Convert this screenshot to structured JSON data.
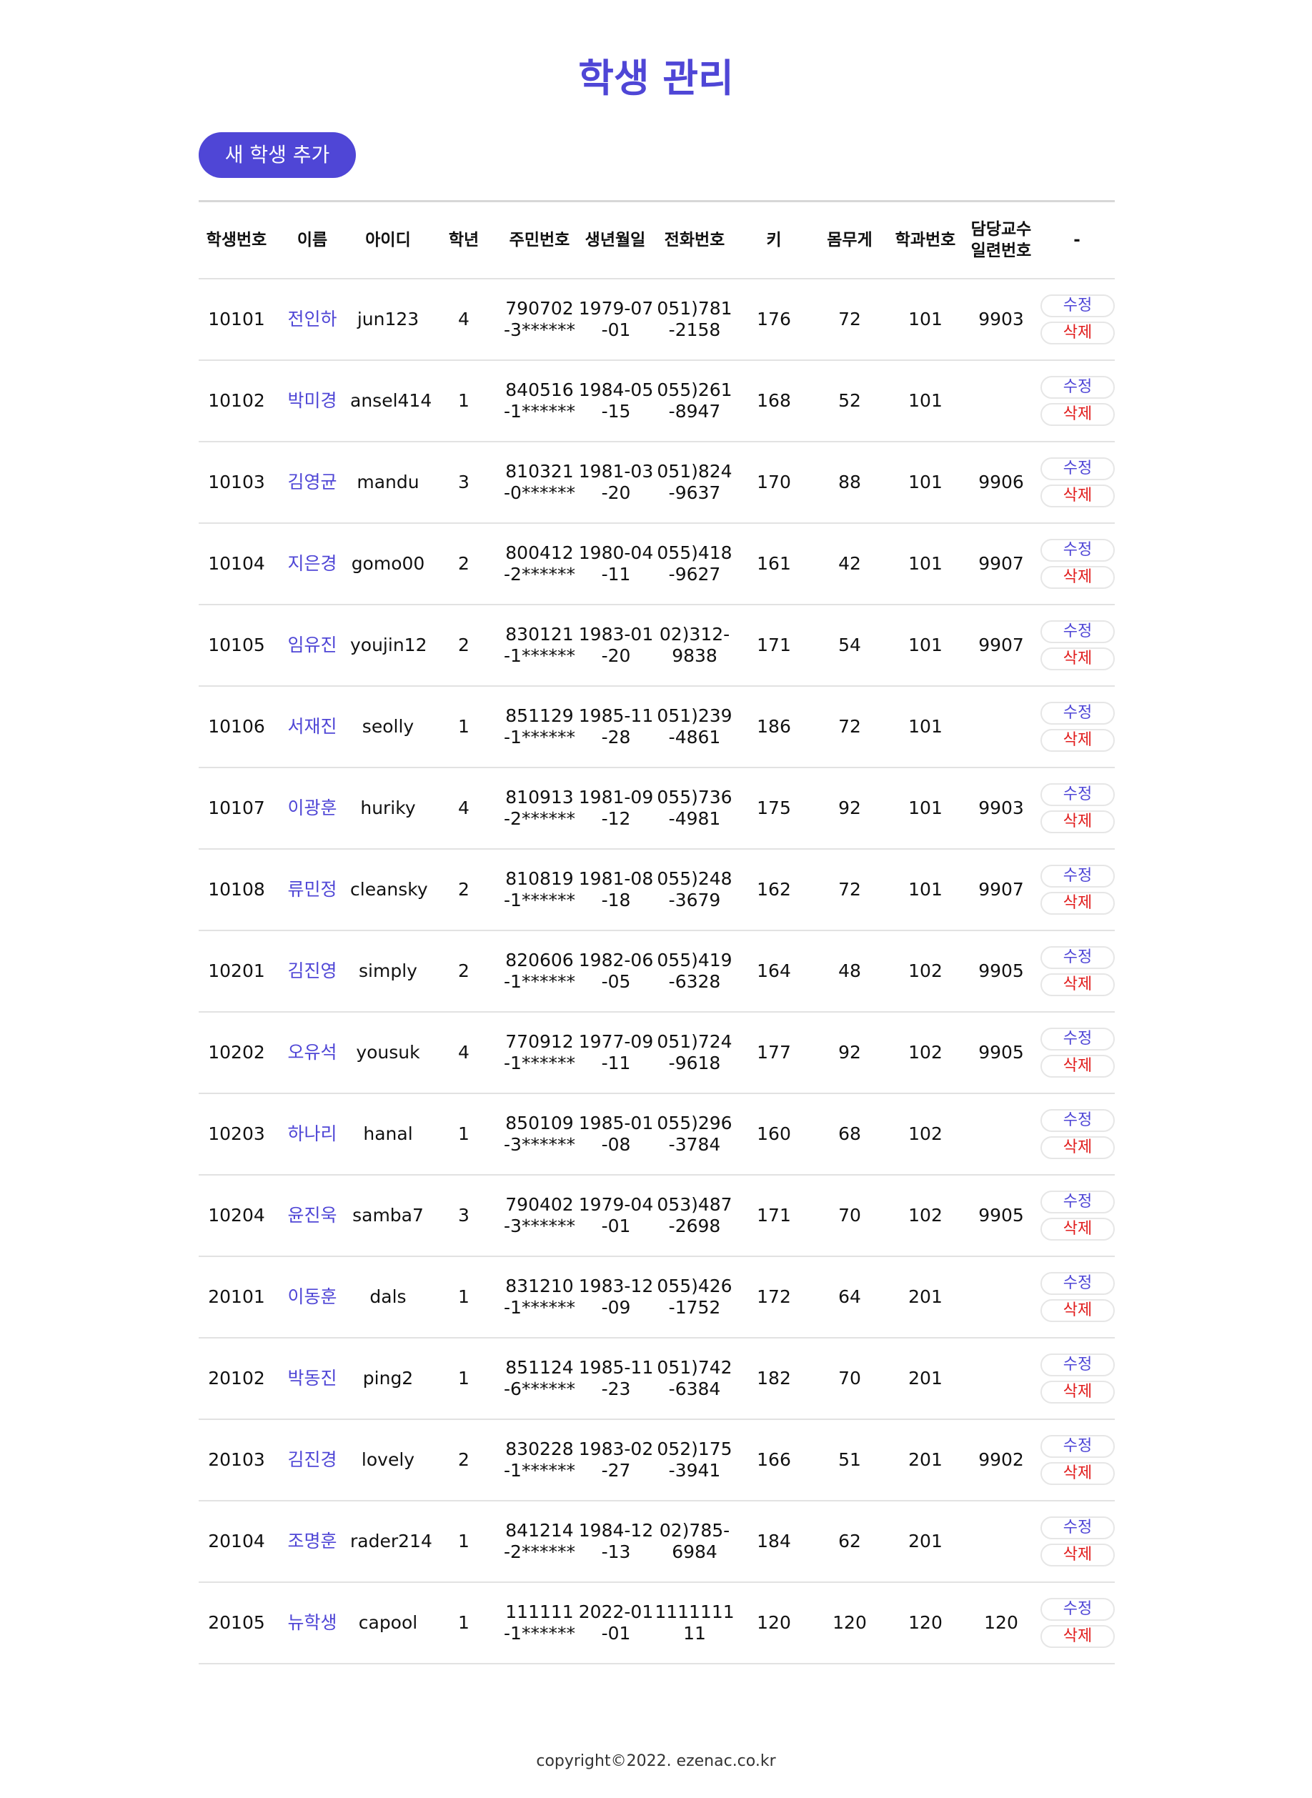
{
  "page": {
    "title": "학생 관리",
    "add_button_label": "새 학생 추가",
    "footer": "copyright©2022. ezenac.co.kr"
  },
  "table": {
    "headers": {
      "studno": "학생번호",
      "name": "이름",
      "userid": "아이디",
      "grade": "학년",
      "jumin": "주민번호",
      "birthdate": "생년월일",
      "tel": "전화번호",
      "height": "키",
      "weight": "몸무게",
      "deptno": "학과번호",
      "profno_line1": "담당교수",
      "profno_line2": "일련번호",
      "actions": "-"
    },
    "edit_label": "수정",
    "delete_label": "삭제",
    "rows": [
      {
        "studno": "10101",
        "name": "전인하",
        "userid": "jun123",
        "grade": "4",
        "jumin": "790702-3******",
        "birthdate": "1979-07-01",
        "tel": "051)781-2158",
        "height": "176",
        "weight": "72",
        "deptno": "101",
        "profno": "9903"
      },
      {
        "studno": "10102",
        "name": "박미경",
        "userid": "ansel414",
        "grade": "1",
        "jumin": "840516-1******",
        "birthdate": "1984-05-15",
        "tel": "055)261-8947",
        "height": "168",
        "weight": "52",
        "deptno": "101",
        "profno": ""
      },
      {
        "studno": "10103",
        "name": "김영균",
        "userid": "mandu",
        "grade": "3",
        "jumin": "810321-0******",
        "birthdate": "1981-03-20",
        "tel": "051)824-9637",
        "height": "170",
        "weight": "88",
        "deptno": "101",
        "profno": "9906"
      },
      {
        "studno": "10104",
        "name": "지은경",
        "userid": "gomo00",
        "grade": "2",
        "jumin": "800412-2******",
        "birthdate": "1980-04-11",
        "tel": "055)418-9627",
        "height": "161",
        "weight": "42",
        "deptno": "101",
        "profno": "9907"
      },
      {
        "studno": "10105",
        "name": "임유진",
        "userid": "youjin12",
        "grade": "2",
        "jumin": "830121-1******",
        "birthdate": "1983-01-20",
        "tel": "02)312-9838",
        "height": "171",
        "weight": "54",
        "deptno": "101",
        "profno": "9907"
      },
      {
        "studno": "10106",
        "name": "서재진",
        "userid": "seolly",
        "grade": "1",
        "jumin": "851129-1******",
        "birthdate": "1985-11-28",
        "tel": "051)239-4861",
        "height": "186",
        "weight": "72",
        "deptno": "101",
        "profno": ""
      },
      {
        "studno": "10107",
        "name": "이광훈",
        "userid": "huriky",
        "grade": "4",
        "jumin": "810913-2******",
        "birthdate": "1981-09-12",
        "tel": "055)736-4981",
        "height": "175",
        "weight": "92",
        "deptno": "101",
        "profno": "9903"
      },
      {
        "studno": "10108",
        "name": "류민정",
        "userid": "cleansky",
        "grade": "2",
        "jumin": "810819-1******",
        "birthdate": "1981-08-18",
        "tel": "055)248-3679",
        "height": "162",
        "weight": "72",
        "deptno": "101",
        "profno": "9907"
      },
      {
        "studno": "10201",
        "name": "김진영",
        "userid": "simply",
        "grade": "2",
        "jumin": "820606-1******",
        "birthdate": "1982-06-05",
        "tel": "055)419-6328",
        "height": "164",
        "weight": "48",
        "deptno": "102",
        "profno": "9905"
      },
      {
        "studno": "10202",
        "name": "오유석",
        "userid": "yousuk",
        "grade": "4",
        "jumin": "770912-1******",
        "birthdate": "1977-09-11",
        "tel": "051)724-9618",
        "height": "177",
        "weight": "92",
        "deptno": "102",
        "profno": "9905"
      },
      {
        "studno": "10203",
        "name": "하나리",
        "userid": "hanal",
        "grade": "1",
        "jumin": "850109-3******",
        "birthdate": "1985-01-08",
        "tel": "055)296-3784",
        "height": "160",
        "weight": "68",
        "deptno": "102",
        "profno": ""
      },
      {
        "studno": "10204",
        "name": "윤진욱",
        "userid": "samba7",
        "grade": "3",
        "jumin": "790402-3******",
        "birthdate": "1979-04-01",
        "tel": "053)487-2698",
        "height": "171",
        "weight": "70",
        "deptno": "102",
        "profno": "9905"
      },
      {
        "studno": "20101",
        "name": "이동훈",
        "userid": "dals",
        "grade": "1",
        "jumin": "831210-1******",
        "birthdate": "1983-12-09",
        "tel": "055)426-1752",
        "height": "172",
        "weight": "64",
        "deptno": "201",
        "profno": ""
      },
      {
        "studno": "20102",
        "name": "박동진",
        "userid": "ping2",
        "grade": "1",
        "jumin": "851124-6******",
        "birthdate": "1985-11-23",
        "tel": "051)742-6384",
        "height": "182",
        "weight": "70",
        "deptno": "201",
        "profno": ""
      },
      {
        "studno": "20103",
        "name": "김진경",
        "userid": "lovely",
        "grade": "2",
        "jumin": "830228-1******",
        "birthdate": "1983-02-27",
        "tel": "052)175-3941",
        "height": "166",
        "weight": "51",
        "deptno": "201",
        "profno": "9902"
      },
      {
        "studno": "20104",
        "name": "조명훈",
        "userid": "rader214",
        "grade": "1",
        "jumin": "841214-2******",
        "birthdate": "1984-12-13",
        "tel": "02)785-6984",
        "height": "184",
        "weight": "62",
        "deptno": "201",
        "profno": ""
      },
      {
        "studno": "20105",
        "name": "뉴학생",
        "userid": "capool",
        "grade": "1",
        "jumin": "111111-1******",
        "birthdate": "2022-01-01",
        "tel": "111111111",
        "height": "120",
        "weight": "120",
        "deptno": "120",
        "profno": "120"
      }
    ]
  },
  "colors": {
    "accent": "#4f46d6",
    "delete": "#e11d1d"
  }
}
